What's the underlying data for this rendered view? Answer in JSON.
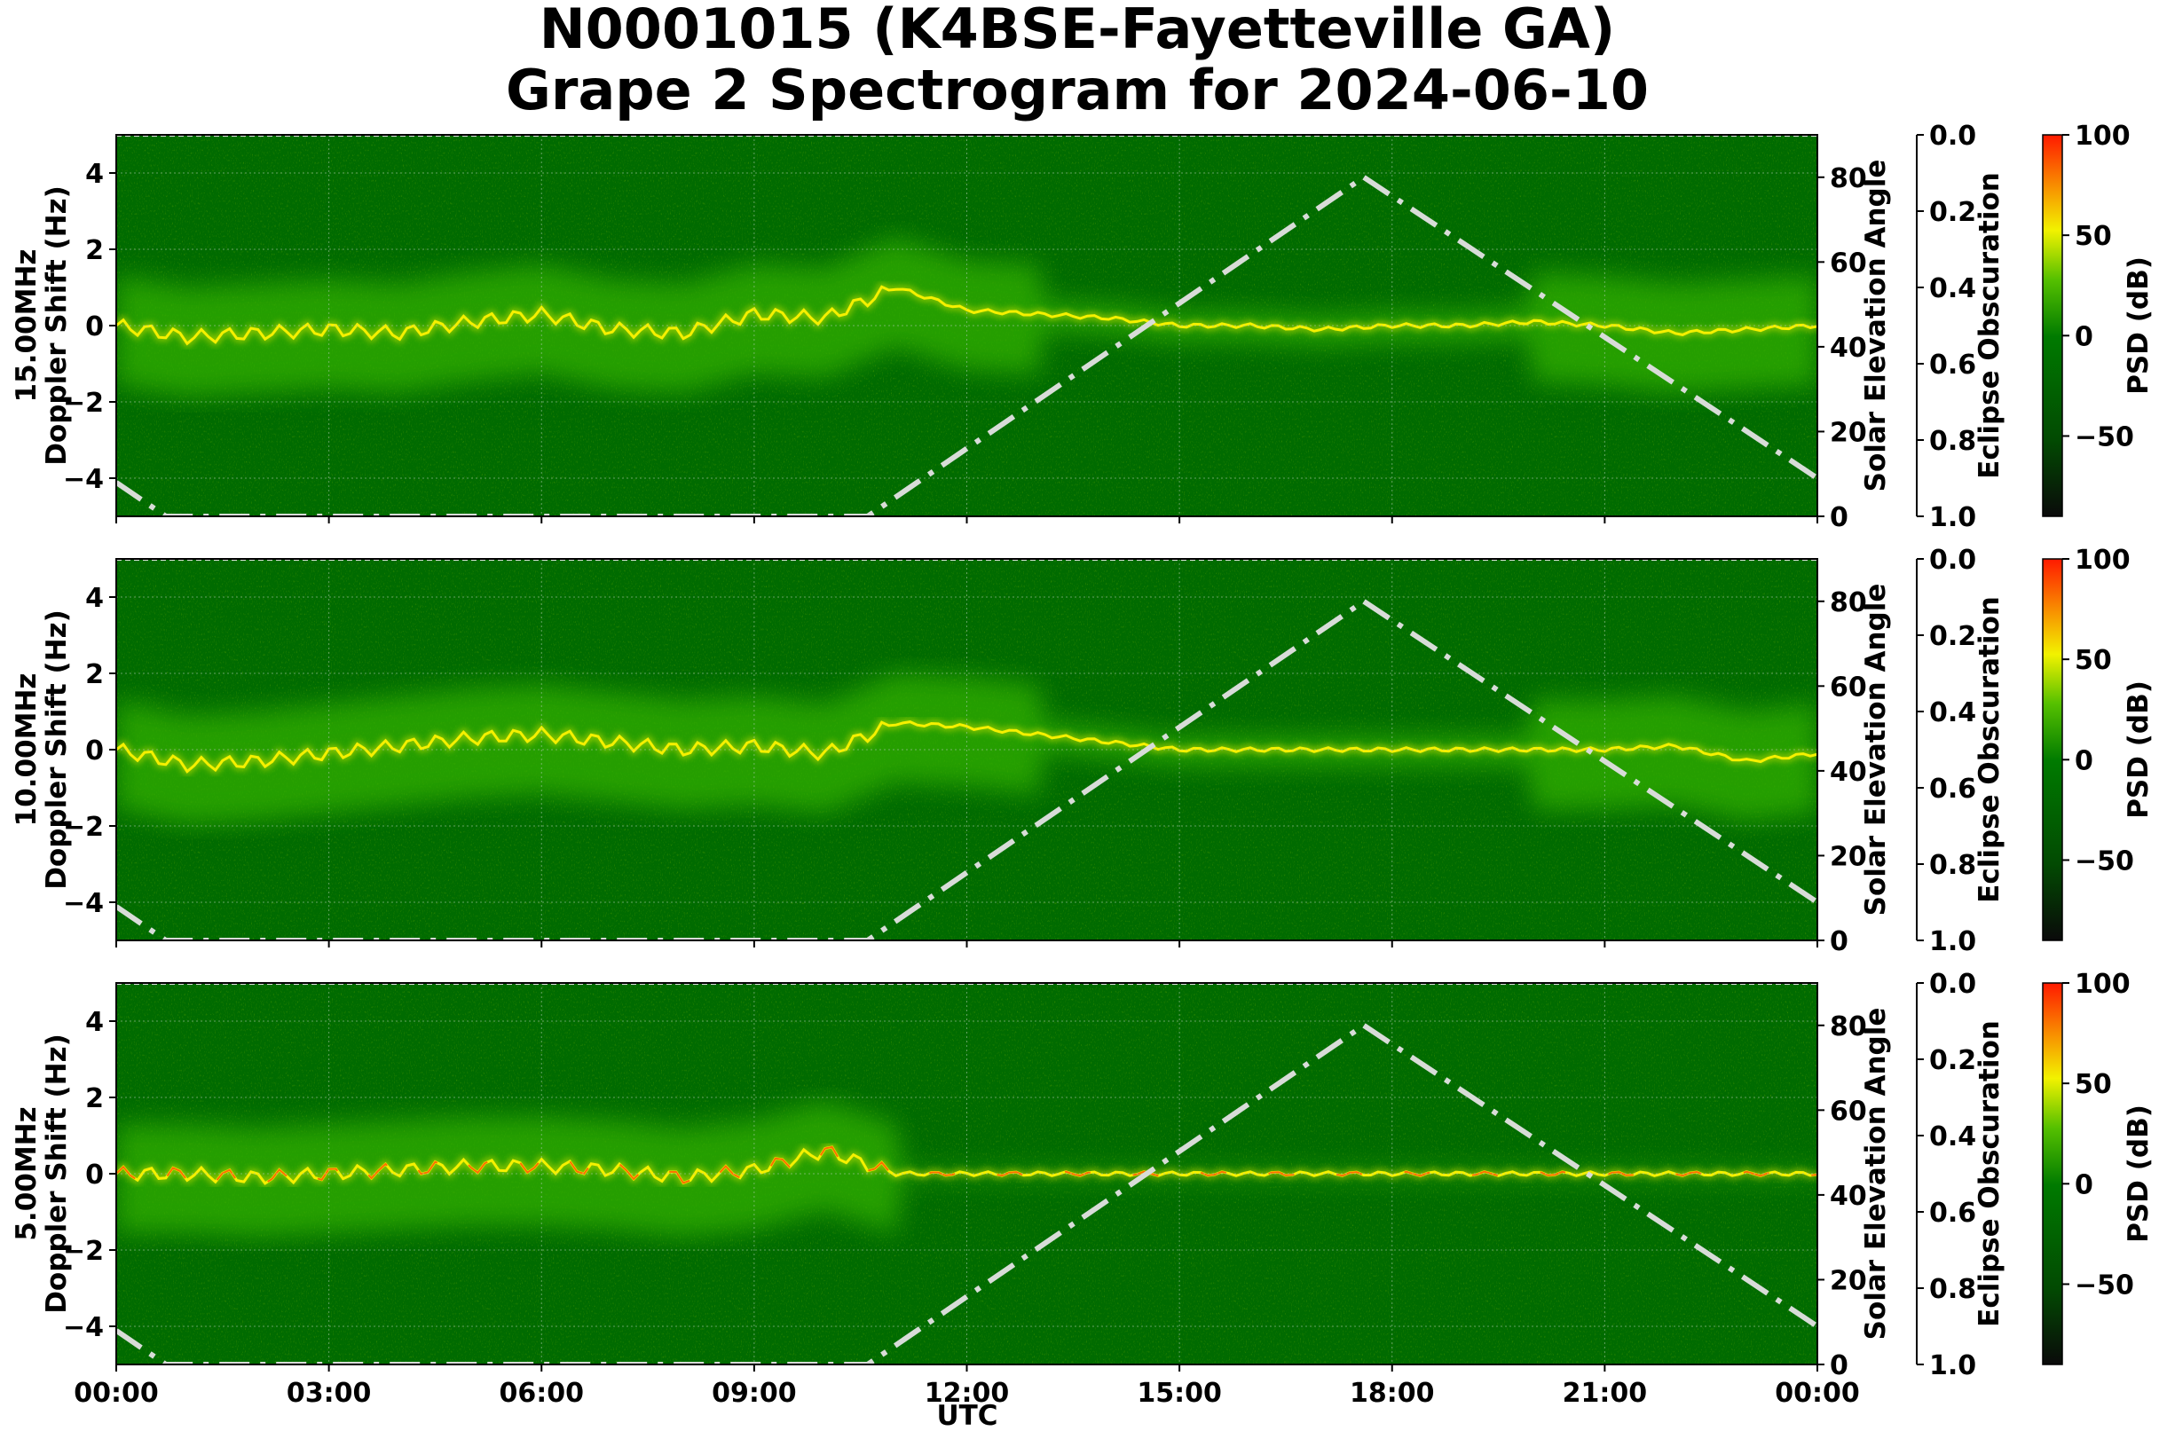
{
  "title_line1": "N0001015 (K4BSE-Fayetteville GA)",
  "title_line2": "Grape 2 Spectrogram for 2024-06-10",
  "colors": {
    "background_green": "#006b00",
    "mid_green": "#33b000",
    "yellow": "#f5f000",
    "red": "#ff1a00",
    "elevation_curve": "#d8dcd8",
    "grid": "#a8c8a8"
  },
  "chart_data": {
    "type": "heatmap",
    "xlabel": "UTC",
    "x_ticks": [
      "00:00",
      "03:00",
      "06:00",
      "09:00",
      "12:00",
      "15:00",
      "18:00",
      "21:00",
      "00:00"
    ],
    "xlim_hours": [
      0,
      24
    ],
    "ylim_doppler_hz": [
      -5,
      5
    ],
    "y_ticks_doppler": [
      "4",
      "2",
      "0",
      "−2",
      "−4"
    ],
    "elevation_label": "Solar Elevation Angle",
    "elevation_lim": [
      0,
      90
    ],
    "elevation_ticks": [
      "80",
      "60",
      "40",
      "20",
      "0"
    ],
    "obscuration_label": "Eclipse Obscuration",
    "obscuration_ticks": [
      "0.0",
      "0.2",
      "0.4",
      "0.6",
      "0.8",
      "1.0"
    ],
    "colorbar_label": "PSD (dB)",
    "colorbar_lim": [
      -90,
      100
    ],
    "colorbar_ticks": [
      "100",
      "50",
      "0",
      "−50"
    ],
    "solar_elevation": {
      "hours": [
        0,
        0.7,
        10.6,
        17.6,
        24
      ],
      "degrees": [
        8,
        0,
        0,
        80,
        9
      ],
      "style": "dash-dot"
    },
    "panels": [
      {
        "freq_label": "15.00MHz",
        "ylabel": "Doppler Shift (Hz)",
        "main_trace": {
          "hours": [
            0,
            1,
            2,
            3,
            4,
            5,
            6,
            7,
            8,
            9,
            10,
            11,
            12,
            13,
            14,
            15,
            16,
            17,
            18,
            19,
            20,
            21,
            22,
            23,
            24
          ],
          "doppler_hz": [
            0.0,
            -0.3,
            -0.2,
            -0.1,
            -0.2,
            0.1,
            0.3,
            -0.1,
            -0.2,
            0.3,
            0.2,
            1.0,
            0.4,
            0.3,
            0.2,
            0.0,
            0.0,
            -0.1,
            0.0,
            0.0,
            0.1,
            0.0,
            -0.2,
            -0.1,
            0.0
          ]
        }
      },
      {
        "freq_label": "10.00MHz",
        "ylabel": "Doppler Shift (Hz)",
        "main_trace": {
          "hours": [
            0,
            1,
            2,
            3,
            4,
            5,
            6,
            7,
            8,
            9,
            10,
            11,
            12,
            13,
            14,
            15,
            16,
            17,
            18,
            19,
            20,
            21,
            22,
            23,
            24
          ],
          "doppler_hz": [
            0.0,
            -0.4,
            -0.3,
            -0.1,
            0.1,
            0.3,
            0.4,
            0.2,
            0.0,
            0.1,
            -0.1,
            0.7,
            0.6,
            0.4,
            0.2,
            0.0,
            0.0,
            0.0,
            0.0,
            0.0,
            0.0,
            0.0,
            0.1,
            -0.3,
            -0.1
          ]
        }
      },
      {
        "freq_label": "5.00MHz",
        "ylabel": "Doppler Shift (Hz)",
        "main_trace": {
          "hours": [
            0,
            1,
            2,
            3,
            4,
            5,
            6,
            7,
            8,
            9,
            10,
            11,
            12,
            13,
            14,
            15,
            16,
            17,
            18,
            19,
            20,
            21,
            22,
            23,
            24
          ],
          "doppler_hz": [
            0.0,
            0.0,
            -0.1,
            0.0,
            0.1,
            0.2,
            0.2,
            0.1,
            -0.1,
            0.1,
            0.6,
            0.0,
            0.0,
            0.0,
            0.0,
            0.0,
            0.0,
            0.0,
            0.0,
            0.0,
            0.0,
            0.0,
            0.0,
            0.0,
            0.0
          ]
        }
      }
    ]
  }
}
